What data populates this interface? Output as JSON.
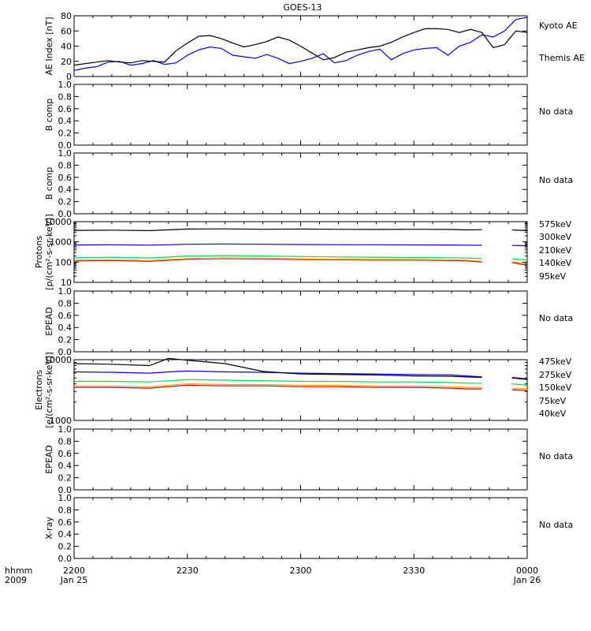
{
  "title": "GOES-13",
  "colors": {
    "black": "#000000",
    "blue": "#0000ff",
    "green": "#00dd44",
    "orange": "#ffa500",
    "red": "#cc0000",
    "darkred": "#aa0000"
  },
  "time_axis": {
    "label_line1": "hhmm",
    "label_line2": "2009",
    "ticks": [
      "2200",
      "2230",
      "2300",
      "2330",
      "0000"
    ],
    "dates": [
      "Jan 25",
      "",
      "",
      "",
      "Jan 26"
    ]
  },
  "chart_data": [
    {
      "type": "line",
      "ylabel": "AE Index [nT]",
      "ylim": [
        0,
        80
      ],
      "yticks": [
        "0",
        "20",
        "40",
        "60",
        "80"
      ],
      "x_label": "minutes after 2009-01-25 22:00",
      "x": [
        0,
        3,
        6,
        9,
        12,
        15,
        18,
        21,
        24,
        27,
        30,
        33,
        36,
        39,
        42,
        45,
        48,
        51,
        54,
        57,
        60,
        63,
        66,
        69,
        72,
        75,
        78,
        81,
        84,
        87,
        90,
        93,
        96,
        99,
        102,
        105,
        108,
        111,
        114,
        117,
        120
      ],
      "series": [
        {
          "name": "Kyoto AE",
          "color": "#0000ff",
          "values": [
            8,
            11,
            13,
            19,
            20,
            15,
            17,
            21,
            16,
            18,
            28,
            35,
            39,
            37,
            28,
            26,
            24,
            29,
            24,
            17,
            20,
            24,
            30,
            18,
            21,
            28,
            33,
            36,
            22,
            30,
            35,
            37,
            38,
            28,
            40,
            45,
            55,
            52,
            60,
            75,
            78
          ]
        },
        {
          "name": "Themis AE",
          "color": "#000000",
          "values": [
            15,
            17,
            19,
            21,
            19,
            18,
            21,
            20,
            19,
            34,
            44,
            53,
            54,
            50,
            44,
            39,
            42,
            46,
            52,
            48,
            40,
            31,
            22,
            25,
            32,
            35,
            38,
            40,
            45,
            52,
            58,
            63,
            63,
            62,
            58,
            62,
            58,
            38,
            42,
            60,
            58
          ]
        }
      ]
    },
    {
      "type": "line",
      "ylabel": "B comp",
      "ylim": [
        0,
        1
      ],
      "yticks": [
        "0.0",
        "0.2",
        "0.4",
        "0.6",
        "0.8",
        "1.0"
      ],
      "status": "No data"
    },
    {
      "type": "line",
      "ylabel": "B comp",
      "ylim": [
        0,
        1
      ],
      "yticks": [
        "0.0",
        "0.2",
        "0.4",
        "0.6",
        "0.8",
        "1.0"
      ],
      "status": "No data"
    },
    {
      "type": "line",
      "ylabel_line1": "Protons",
      "ylabel_line2": "[p/(cm²-s-sr-keV)]",
      "scale": "log",
      "ylim": [
        10,
        10000
      ],
      "yticks": [
        "10",
        "100",
        "1000",
        "10000"
      ],
      "x": [
        0,
        10,
        20,
        30,
        40,
        50,
        60,
        70,
        80,
        90,
        100,
        104,
        108,
        112,
        116,
        120
      ],
      "series": [
        {
          "name": "575keV",
          "color": "#cc0000",
          "values": [
            115,
            120,
            110,
            140,
            150,
            145,
            135,
            130,
            125,
            125,
            120,
            115,
            100,
            null,
            95,
            70
          ]
        },
        {
          "name": "300keV",
          "color": "#ffa500",
          "values": [
            125,
            130,
            120,
            150,
            160,
            155,
            145,
            140,
            135,
            135,
            130,
            125,
            110,
            null,
            105,
            85
          ]
        },
        {
          "name": "210keV",
          "color": "#00dd44",
          "values": [
            165,
            175,
            160,
            200,
            210,
            200,
            190,
            180,
            175,
            170,
            165,
            160,
            150,
            null,
            145,
            130
          ]
        },
        {
          "name": "140keV",
          "color": "#0000ff",
          "values": [
            700,
            720,
            690,
            760,
            790,
            760,
            740,
            730,
            720,
            710,
            700,
            690,
            680,
            null,
            670,
            640
          ]
        },
        {
          "name": "95keV",
          "color": "#000000",
          "values": [
            3700,
            3800,
            3600,
            4300,
            4400,
            4200,
            4300,
            4200,
            4100,
            4200,
            4100,
            3900,
            4000,
            null,
            3900,
            3600
          ]
        }
      ]
    },
    {
      "type": "line",
      "ylabel": "EPEAD",
      "ylim": [
        0,
        1
      ],
      "yticks": [
        "0.0",
        "0.2",
        "0.4",
        "0.6",
        "0.8",
        "1.0"
      ],
      "status": "No data"
    },
    {
      "type": "line",
      "ylabel_line1": "Electrons",
      "ylabel_line2": "[e/(cm²-s-sr-keV)]",
      "scale": "log",
      "ylim": [
        1000,
        10000
      ],
      "yticks": [
        "1000",
        "10000"
      ],
      "x": [
        0,
        10,
        20,
        25,
        30,
        40,
        50,
        60,
        70,
        80,
        90,
        100,
        104,
        108,
        112,
        116,
        120
      ],
      "series": [
        {
          "name": "475keV",
          "color": "#cc0000",
          "values": [
            3500,
            3500,
            3400,
            3600,
            3800,
            3700,
            3700,
            3600,
            3600,
            3500,
            3500,
            3400,
            3300,
            3300,
            null,
            3200,
            3100
          ]
        },
        {
          "name": "275keV",
          "color": "#ffa500",
          "values": [
            3700,
            3700,
            3600,
            3800,
            4000,
            3900,
            3900,
            3800,
            3800,
            3700,
            3700,
            3600,
            3500,
            3500,
            null,
            3400,
            3300
          ]
        },
        {
          "name": "150keV",
          "color": "#00dd44",
          "values": [
            4400,
            4400,
            4300,
            4500,
            4700,
            4600,
            4500,
            4400,
            4400,
            4300,
            4300,
            4200,
            4100,
            4100,
            null,
            4000,
            3800
          ]
        },
        {
          "name": "75keV",
          "color": "#0000ff",
          "values": [
            6300,
            6200,
            6000,
            6300,
            6500,
            6300,
            6200,
            6000,
            5900,
            5800,
            5700,
            5600,
            5400,
            5200,
            null,
            5100,
            4800
          ]
        },
        {
          "name": "40keV",
          "color": "#000000",
          "values": [
            8600,
            8400,
            8000,
            10500,
            9800,
            8600,
            6400,
            5800,
            5700,
            5600,
            5400,
            5300,
            5200,
            5100,
            null,
            5000,
            4700
          ]
        }
      ]
    },
    {
      "type": "line",
      "ylabel": "EPEAD",
      "ylim": [
        0,
        1
      ],
      "yticks": [
        "0.0",
        "0.2",
        "0.4",
        "0.6",
        "0.8",
        "1.0"
      ],
      "status": "No data"
    },
    {
      "type": "line",
      "ylabel": "X-ray",
      "ylim": [
        0,
        1
      ],
      "yticks": [
        "0.0",
        "0.2",
        "0.4",
        "0.6",
        "0.8",
        "1.0"
      ],
      "status": "No data"
    }
  ]
}
